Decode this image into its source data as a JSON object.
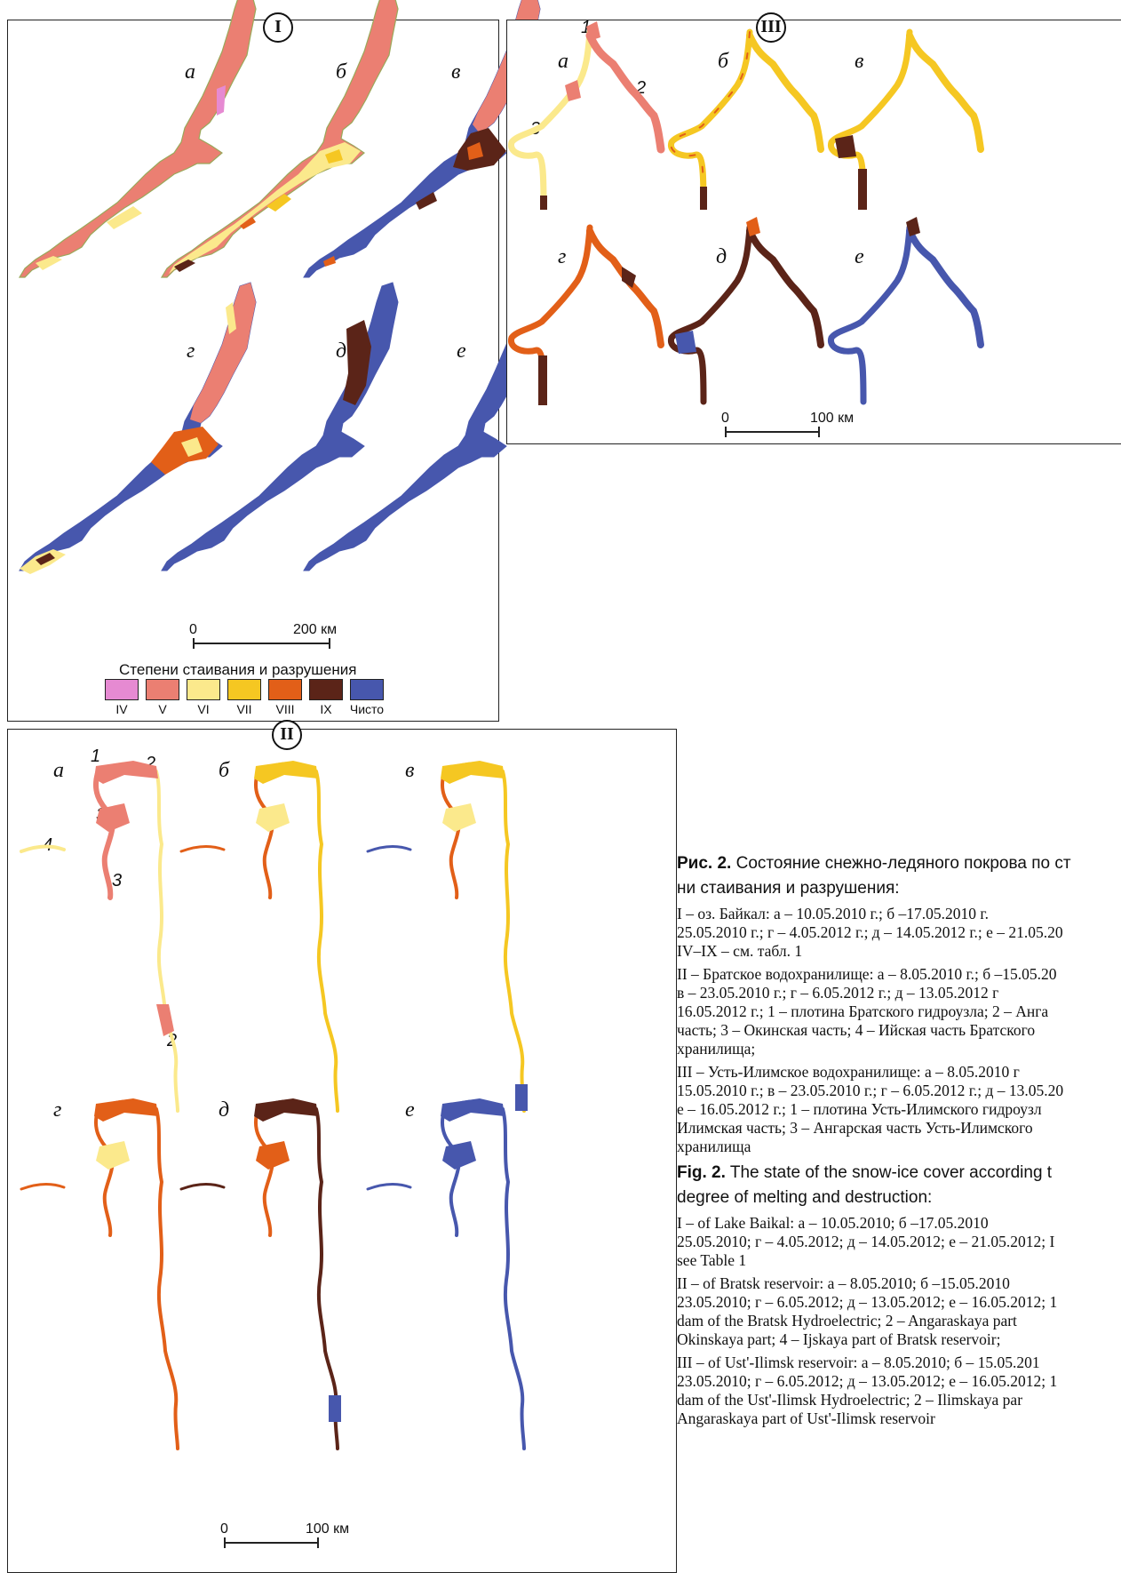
{
  "colors": {
    "IV": "#e68ad2",
    "V": "#eb7f72",
    "VI": "#fbe98c",
    "VII": "#f5c722",
    "VIII": "#e25f18",
    "IX": "#5b2418",
    "clear": "#4757ad"
  },
  "panel_I": {
    "roman": "I",
    "letters": [
      "а",
      "б",
      "в",
      "г",
      "д",
      "е"
    ],
    "scale": {
      "zero": "0",
      "end": "200 км"
    },
    "legend": {
      "title": "Степени стаивания и разрушения",
      "items": [
        {
          "label": "IV",
          "color": "#e68ad2"
        },
        {
          "label": "V",
          "color": "#eb7f72"
        },
        {
          "label": "VI",
          "color": "#fbe98c"
        },
        {
          "label": "VII",
          "color": "#f5c722"
        },
        {
          "label": "VIII",
          "color": "#e25f18"
        },
        {
          "label": "IX",
          "color": "#5b2418"
        },
        {
          "label": "Чисто",
          "color": "#4757ad"
        }
      ]
    }
  },
  "panel_II": {
    "roman": "II",
    "letters": [
      "а",
      "б",
      "в",
      "г",
      "д",
      "е"
    ],
    "markers": {
      "m1": "1",
      "m2a": "2",
      "m3a": "3",
      "m4": "4",
      "m3b": "3",
      "m2b": "2"
    },
    "scale": {
      "zero": "0",
      "end": "100 км"
    }
  },
  "panel_III": {
    "roman": "III",
    "letters": [
      "а",
      "б",
      "в",
      "г",
      "д",
      "е"
    ],
    "markers": {
      "m1": "1",
      "m2": "2",
      "m3": "3"
    },
    "scale": {
      "zero": "0",
      "end": "100 км"
    }
  },
  "caption": {
    "ru_title_bold": "Рис. 2.",
    "ru_title_1": " Состояние снежно-ледяного покрова по ст",
    "ru_title_2": "ни стаивания и разрушения:",
    "ru_I_1": "I – оз. Байкал: а – 10.05.2010 г.; б –17.05.2010 г.",
    "ru_I_2": "25.05.2010 г.; г – 4.05.2012 г.; д – 14.05.2012 г.; е – 21.05.20",
    "ru_I_3": "IV–IX – см. табл. 1",
    "ru_II_1": "II – Братское водохранилище: а – 8.05.2010 г.; б –15.05.20",
    "ru_II_2": "в – 23.05.2010 г.; г – 6.05.2012 г.; д – 13.05.2012 г",
    "ru_II_3": "16.05.2012 г.; 1 – плотина Братского гидроузла; 2 – Анга",
    "ru_II_4": "часть; 3 – Окинская часть; 4 – Ийская часть Братского",
    "ru_II_5": "хранилища;",
    "ru_III_1": "III – Усть-Илимское водохранилище: а – 8.05.2010 г",
    "ru_III_2": "15.05.2010 г.; в – 23.05.2010 г.; г – 6.05.2012 г.; д – 13.05.20",
    "ru_III_3": "е – 16.05.2012 г.; 1 – плотина Усть-Илимского гидроузл",
    "ru_III_4": "Илимская часть; 3 – Ангарская часть Усть-Илимского",
    "ru_III_5": "хранилища",
    "en_title_bold": "Fig. 2.",
    "en_title_1": " The state of the snow-ice cover according t",
    "en_title_2": "degree of melting and destruction:",
    "en_I_1": "I – of Lake Baikal: а – 10.05.2010; б –17.05.2010",
    "en_I_2": "25.05.2010; г – 4.05.2012; д – 14.05.2012; е – 21.05.2012; I",
    "en_I_3": "see Table 1",
    "en_II_1": "II – of Bratsk reservoir: а – 8.05.2010; б –15.05.2010",
    "en_II_2": "23.05.2010; г – 6.05.2012; д – 13.05.2012; е – 16.05.2012; 1",
    "en_II_3": "dam of the Bratsk Hydroelectric; 2 – Angaraskaya part",
    "en_II_4": "Okinskaya part; 4 – Ijskaya part of Bratsk reservoir;",
    "en_III_1": "III – of Ust'-Ilimsk reservoir: а – 8.05.2010; б – 15.05.201",
    "en_III_2": "23.05.2010; г – 6.05.2012; д – 13.05.2012; е – 16.05.2012; 1",
    "en_III_3": "dam of the Ust'-Ilimsk Hydroelectric; 2 – Ilimskaya par",
    "en_III_4": "Angaraskaya part of Ust'-Ilimsk reservoir"
  }
}
